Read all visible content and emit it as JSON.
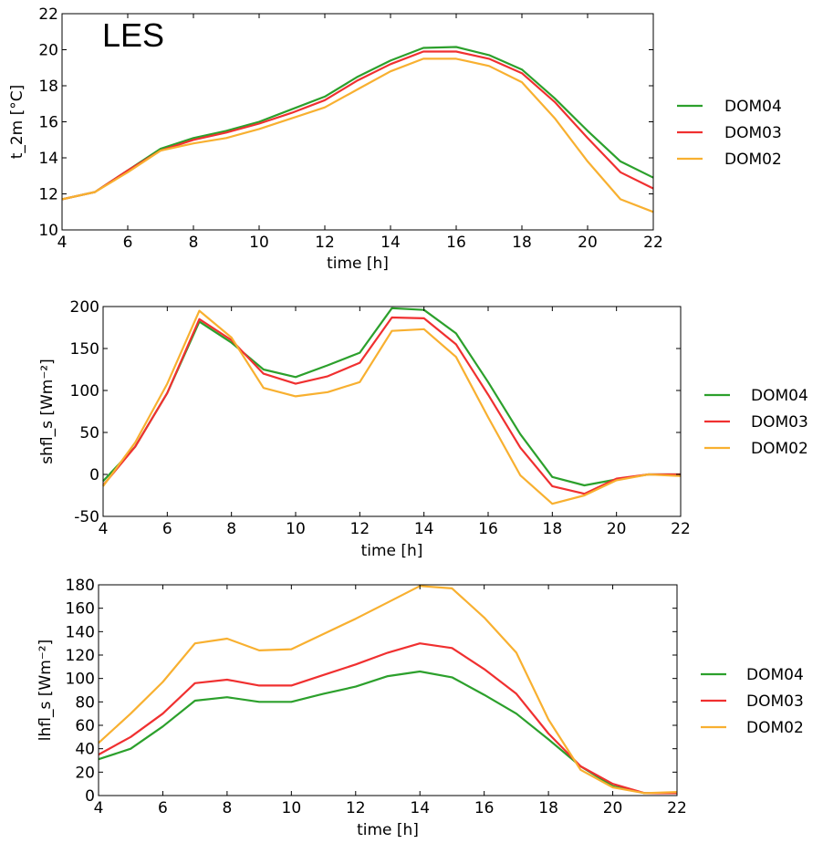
{
  "overlay_label": "LES",
  "chart_data": [
    {
      "type": "line",
      "ylabel": "t_2m [°C]",
      "xlabel": "time [h]",
      "xlim": [
        4,
        22
      ],
      "ylim": [
        10,
        22
      ],
      "xticks": [
        4,
        6,
        8,
        10,
        12,
        14,
        16,
        18,
        20,
        22
      ],
      "yticks": [
        10,
        12,
        14,
        16,
        18,
        20,
        22
      ],
      "x": [
        4,
        5,
        6,
        7,
        8,
        9,
        10,
        11,
        12,
        13,
        14,
        15,
        16,
        17,
        18,
        19,
        20,
        21,
        22
      ],
      "series": [
        {
          "name": "DOM04",
          "color": "#2ca02c",
          "values": [
            11.7,
            12.1,
            13.3,
            14.5,
            15.1,
            15.5,
            16.0,
            16.7,
            17.4,
            18.5,
            19.4,
            20.1,
            20.15,
            19.7,
            18.9,
            17.3,
            15.5,
            13.8,
            12.9
          ]
        },
        {
          "name": "DOM03",
          "color": "#f03030",
          "values": [
            11.7,
            12.1,
            13.3,
            14.4,
            15.0,
            15.4,
            15.9,
            16.5,
            17.2,
            18.3,
            19.2,
            19.9,
            19.9,
            19.5,
            18.7,
            17.1,
            15.1,
            13.2,
            12.3
          ]
        },
        {
          "name": "DOM02",
          "color": "#f8b030",
          "values": [
            11.7,
            12.1,
            13.2,
            14.4,
            14.8,
            15.1,
            15.6,
            16.2,
            16.8,
            17.8,
            18.8,
            19.5,
            19.5,
            19.1,
            18.2,
            16.2,
            13.8,
            11.7,
            11.0
          ]
        }
      ],
      "legend_position": "right"
    },
    {
      "type": "line",
      "ylabel": "shfl_s [Wm⁻²]",
      "xlabel": "time [h]",
      "xlim": [
        4,
        22
      ],
      "ylim": [
        -50,
        200
      ],
      "xticks": [
        4,
        6,
        8,
        10,
        12,
        14,
        16,
        18,
        20,
        22
      ],
      "yticks": [
        -50,
        0,
        50,
        100,
        150,
        200
      ],
      "x": [
        4,
        5,
        6,
        7,
        8,
        9,
        10,
        11,
        12,
        13,
        14,
        15,
        16,
        17,
        18,
        19,
        20,
        21,
        22
      ],
      "series": [
        {
          "name": "DOM04",
          "color": "#2ca02c",
          "values": [
            -8,
            33,
            97,
            182,
            157,
            125,
            116,
            130,
            145,
            198,
            196,
            168,
            110,
            48,
            -3,
            -13,
            -6,
            0,
            0
          ]
        },
        {
          "name": "DOM03",
          "color": "#f03030",
          "values": [
            -13,
            33,
            97,
            185,
            160,
            120,
            108,
            117,
            133,
            187,
            186,
            155,
            95,
            32,
            -14,
            -23,
            -5,
            0,
            0
          ]
        },
        {
          "name": "DOM02",
          "color": "#f8b030",
          "values": [
            -14,
            38,
            108,
            195,
            163,
            103,
            93,
            98,
            110,
            171,
            173,
            140,
            68,
            -1,
            -35,
            -25,
            -7,
            0,
            -2
          ]
        }
      ],
      "legend_position": "right"
    },
    {
      "type": "line",
      "ylabel": "lhfl_s [Wm⁻²]",
      "xlabel": "time [h]",
      "xlim": [
        4,
        22
      ],
      "ylim": [
        0,
        180
      ],
      "xticks": [
        4,
        6,
        8,
        10,
        12,
        14,
        16,
        18,
        20,
        22
      ],
      "yticks": [
        0,
        20,
        40,
        60,
        80,
        100,
        120,
        140,
        160,
        180
      ],
      "x": [
        4,
        5,
        6,
        7,
        8,
        9,
        10,
        11,
        12,
        13,
        14,
        15,
        16,
        17,
        18,
        19,
        20,
        21,
        22
      ],
      "series": [
        {
          "name": "DOM04",
          "color": "#2ca02c",
          "values": [
            31,
            40,
            59,
            81,
            84,
            80,
            80,
            87,
            93,
            102,
            106,
            101,
            86,
            70,
            48,
            25,
            8,
            2,
            2
          ]
        },
        {
          "name": "DOM03",
          "color": "#f03030",
          "values": [
            35,
            50,
            70,
            96,
            99,
            94,
            94,
            103,
            112,
            122,
            130,
            126,
            108,
            87,
            53,
            25,
            10,
            2,
            2
          ]
        },
        {
          "name": "DOM02",
          "color": "#f8b030",
          "values": [
            45,
            70,
            97,
            130,
            134,
            124,
            125,
            138,
            151,
            165,
            179,
            177,
            152,
            122,
            65,
            22,
            7,
            2,
            3
          ]
        }
      ],
      "legend_position": "right"
    }
  ]
}
